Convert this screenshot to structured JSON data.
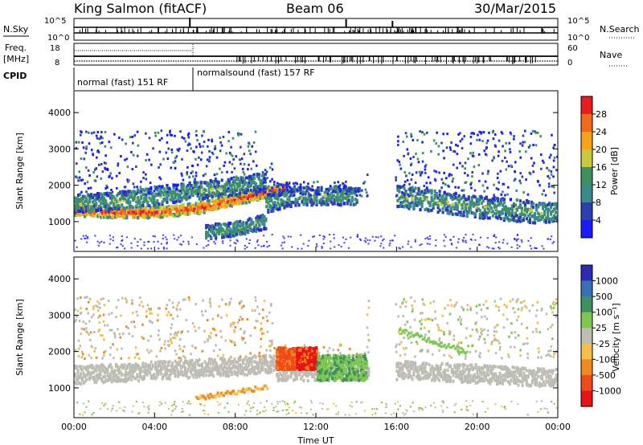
{
  "header": {
    "station": "King Salmon (fitACF)",
    "beam": "Beam 06",
    "date": "30/Mar/2015"
  },
  "meta_panels": {
    "n_sky_label": "N.Sky",
    "n_search_label": "N.Search",
    "freq_label": "Freq.",
    "freq_unit": "[MHz]",
    "nave_label": "Nave",
    "cpid_label": "CPID",
    "left_ticks_top": [
      "10^5",
      "10^0"
    ],
    "right_ticks_top": [
      "10^5",
      "10^0"
    ],
    "left_ticks_freq": [
      "18",
      "8"
    ],
    "right_ticks_nave": [
      "60",
      "0"
    ],
    "cpid_segments": [
      {
        "name": "normal (fast) 151 RF",
        "start_hour": 0,
        "end_hour": 5.85
      },
      {
        "name": "normalsound (fast) 157 RF",
        "start_hour": 5.85,
        "end_hour": 24
      }
    ]
  },
  "colors": {
    "power_scale": [
      "#1a1aff",
      "#2b3fb0",
      "#3a8a8a",
      "#3f8f60",
      "#c9c93a",
      "#f7a21a",
      "#f06a1a",
      "#e81e1e"
    ],
    "velocity_scale": [
      "#2c2cb0",
      "#3a6fb8",
      "#3f8f60",
      "#7ec850",
      "#bdbdb3",
      "#f3c14a",
      "#f08a1e",
      "#f04a1a",
      "#e81414"
    ]
  },
  "chart_data": [
    {
      "type": "heatmap",
      "panel": "power",
      "xlabel": "Time UT",
      "ylabel": "Slant Range [km]",
      "xlim": [
        0,
        24
      ],
      "ylim": [
        180,
        4600
      ],
      "x_ticks": [
        "00:00",
        "04:00",
        "08:00",
        "12:00",
        "16:00",
        "20:00",
        "00:00"
      ],
      "y_ticks": [
        1000,
        2000,
        3000,
        4000
      ],
      "colorbar_label": "Power [dB]",
      "colorbar_ticks": [
        4,
        8,
        12,
        16,
        20,
        24,
        28
      ],
      "bands": [
        {
          "x": [
            0,
            2,
            4,
            6,
            8,
            9.5,
            10.5
          ],
          "y_center": [
            1300,
            1250,
            1250,
            1350,
            1600,
            1800,
            1900
          ],
          "width": 150,
          "level": 3
        },
        {
          "x": [
            0,
            2,
            4,
            6,
            8,
            9.5
          ],
          "y_center": [
            1500,
            1550,
            1700,
            1850,
            1950,
            2100
          ],
          "width": 250,
          "level": 1
        },
        {
          "x": [
            6.5,
            8,
            9.5
          ],
          "y_center": [
            700,
            800,
            1000
          ],
          "width": 200,
          "level": 1
        },
        {
          "x": [
            9.5,
            11,
            12.5,
            14
          ],
          "y_center": [
            1500,
            1700,
            1700,
            1700
          ],
          "width": 250,
          "level": 1
        },
        {
          "x": [
            16,
            18,
            20,
            22,
            24
          ],
          "y_center": [
            1700,
            1550,
            1400,
            1300,
            1200
          ],
          "width": 300,
          "level": 1
        }
      ]
    },
    {
      "type": "heatmap",
      "panel": "velocity",
      "xlabel": "Time UT",
      "ylabel": "Slant Range [km]",
      "xlim": [
        0,
        24
      ],
      "ylim": [
        180,
        4600
      ],
      "x_ticks": [
        "00:00",
        "04:00",
        "08:00",
        "12:00",
        "16:00",
        "20:00",
        "00:00"
      ],
      "y_ticks": [
        1000,
        2000,
        3000,
        4000
      ],
      "colorbar_label": "Velocity [m s⁻¹]",
      "colorbar_ticks": [
        "1000",
        "500",
        "100",
        "25",
        "-25",
        "-100",
        "-500",
        "-1000"
      ],
      "features": [
        {
          "x": [
            10,
            11
          ],
          "y": [
            1500,
            2100
          ],
          "category": "-500"
        },
        {
          "x": [
            11,
            12
          ],
          "y": [
            1500,
            2100
          ],
          "category": "-1000"
        },
        {
          "x": [
            12,
            14.5
          ],
          "y": [
            1200,
            1900
          ],
          "category": "100"
        }
      ]
    }
  ],
  "xaxis": {
    "title": "Time UT",
    "ticks": [
      "00:00",
      "04:00",
      "08:00",
      "12:00",
      "16:00",
      "20:00",
      "00:00"
    ]
  }
}
